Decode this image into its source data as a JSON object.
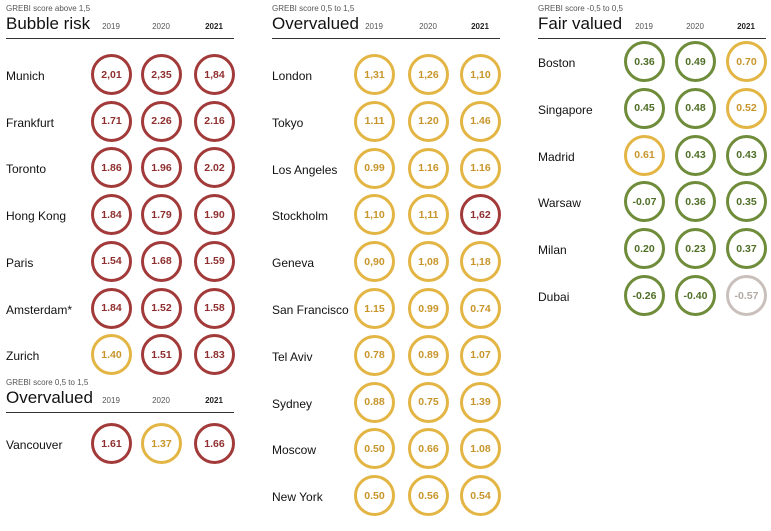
{
  "chart_data": [
    {
      "type": "table",
      "subtitle": "GREBI score above 1,5",
      "title": "Bubble risk",
      "years": [
        "2019",
        "2020",
        "2021"
      ],
      "rows": [
        {
          "city": "Munich",
          "values": [
            "2,01",
            "2,35",
            "1,84"
          ],
          "colors": [
            "red",
            "red",
            "red"
          ]
        },
        {
          "city": "Frankfurt",
          "values": [
            "1.71",
            "2.26",
            "2.16"
          ],
          "colors": [
            "red",
            "red",
            "red"
          ]
        },
        {
          "city": "Toronto",
          "values": [
            "1.86",
            "1.96",
            "2.02"
          ],
          "colors": [
            "red",
            "red",
            "red"
          ]
        },
        {
          "city": "Hong Kong",
          "values": [
            "1.84",
            "1.79",
            "1.90"
          ],
          "colors": [
            "red",
            "red",
            "red"
          ]
        },
        {
          "city": "Paris",
          "values": [
            "1.54",
            "1.68",
            "1.59"
          ],
          "colors": [
            "red",
            "red",
            "red"
          ]
        },
        {
          "city": "Amsterdam*",
          "values": [
            "1.84",
            "1.52",
            "1.58"
          ],
          "colors": [
            "red",
            "red",
            "red"
          ]
        },
        {
          "city": "Zurich",
          "values": [
            "1.40",
            "1.51",
            "1.83"
          ],
          "colors": [
            "yellow",
            "red",
            "red"
          ]
        }
      ]
    },
    {
      "type": "table",
      "subtitle": "GREBI score 0,5 to 1,5",
      "title": "Overvalued",
      "years": [
        "2019",
        "2020",
        "2021"
      ],
      "rows": [
        {
          "city": "Vancouver",
          "values": [
            "1.61",
            "1.37",
            "1.66"
          ],
          "colors": [
            "red",
            "yellow",
            "red"
          ]
        }
      ]
    },
    {
      "type": "table",
      "subtitle": "GREBI score 0,5 to 1,5",
      "title": "Overvalued",
      "years": [
        "2019",
        "2020",
        "2021"
      ],
      "rows": [
        {
          "city": "London",
          "values": [
            "1,31",
            "1,26",
            "1,10"
          ],
          "colors": [
            "yellow",
            "yellow",
            "yellow"
          ]
        },
        {
          "city": "Tokyo",
          "values": [
            "1.11",
            "1.20",
            "1.46"
          ],
          "colors": [
            "yellow",
            "yellow",
            "yellow"
          ]
        },
        {
          "city": "Los Angeles",
          "values": [
            "0.99",
            "1.16",
            "1.16"
          ],
          "colors": [
            "yellow",
            "yellow",
            "yellow"
          ]
        },
        {
          "city": "Stockholm",
          "values": [
            "1,10",
            "1,11",
            "1,62"
          ],
          "colors": [
            "yellow",
            "yellow",
            "red"
          ]
        },
        {
          "city": "Geneva",
          "values": [
            "0,90",
            "1,08",
            "1,18"
          ],
          "colors": [
            "yellow",
            "yellow",
            "yellow"
          ]
        },
        {
          "city": "San Francisco",
          "values": [
            "1.15",
            "0.99",
            "0.74"
          ],
          "colors": [
            "yellow",
            "yellow",
            "yellow"
          ]
        },
        {
          "city": "Tel Aviv",
          "values": [
            "0.78",
            "0.89",
            "1.07"
          ],
          "colors": [
            "yellow",
            "yellow",
            "yellow"
          ]
        },
        {
          "city": "Sydney",
          "values": [
            "0.88",
            "0.75",
            "1.39"
          ],
          "colors": [
            "yellow",
            "yellow",
            "yellow"
          ]
        },
        {
          "city": "Moscow",
          "values": [
            "0.50",
            "0.66",
            "1.08"
          ],
          "colors": [
            "yellow",
            "yellow",
            "yellow"
          ]
        },
        {
          "city": "New York",
          "values": [
            "0.50",
            "0.56",
            "0.54"
          ],
          "colors": [
            "yellow",
            "yellow",
            "yellow"
          ]
        }
      ]
    },
    {
      "type": "table",
      "subtitle": "GREBI score -0,5 to 0,5",
      "title": "Fair valued",
      "years": [
        "2019",
        "2020",
        "2021"
      ],
      "rows": [
        {
          "city": "Boston",
          "values": [
            "0.36",
            "0.49",
            "0.70"
          ],
          "colors": [
            "green",
            "green",
            "yellow"
          ]
        },
        {
          "city": "Singapore",
          "values": [
            "0.45",
            "0.48",
            "0.52"
          ],
          "colors": [
            "green",
            "green",
            "yellow"
          ]
        },
        {
          "city": "Madrid",
          "values": [
            "0.61",
            "0.43",
            "0.43"
          ],
          "colors": [
            "yellow",
            "green",
            "green"
          ]
        },
        {
          "city": "Warsaw",
          "values": [
            "-0.07",
            "0.36",
            "0.35"
          ],
          "colors": [
            "green",
            "green",
            "green"
          ]
        },
        {
          "city": "Milan",
          "values": [
            "0.20",
            "0.23",
            "0.37"
          ],
          "colors": [
            "green",
            "green",
            "green"
          ]
        },
        {
          "city": "Dubai",
          "values": [
            "-0.26",
            "-0.40",
            "-0.57"
          ],
          "colors": [
            "green",
            "green",
            "grey"
          ]
        }
      ]
    }
  ]
}
